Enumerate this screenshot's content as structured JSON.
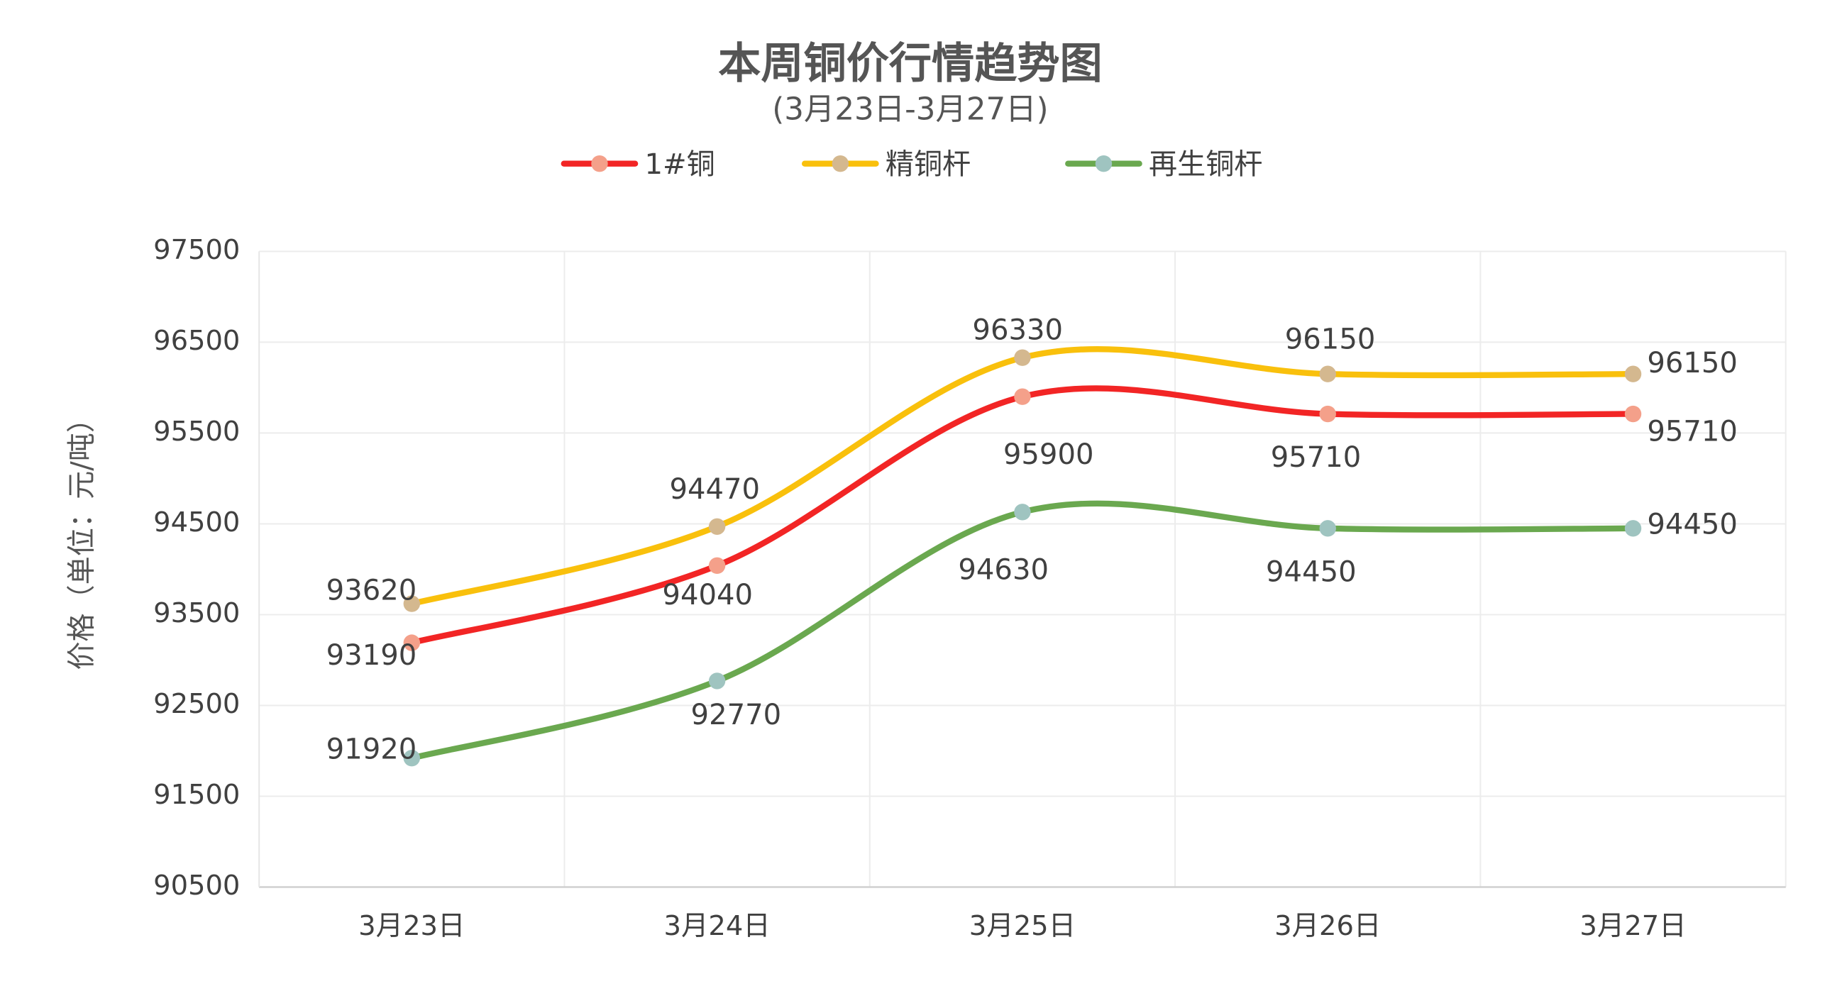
{
  "chart_data": {
    "type": "line",
    "title": "本周铜价行情趋势图",
    "subtitle": "(3月23日-3月27日)",
    "y_label": "价格（单位：元/吨）",
    "categories": [
      "3月23日",
      "3月24日",
      "3月25日",
      "3月26日",
      "3月27日"
    ],
    "series": [
      {
        "name": "1#铜",
        "color": "#f22525",
        "marker_color": "#f4a08a",
        "values": [
          93190,
          94040,
          95900,
          95710,
          95710
        ]
      },
      {
        "name": "精铜杆",
        "color": "#f9c00c",
        "marker_color": "#d4b88f",
        "values": [
          93620,
          94470,
          96330,
          96150,
          96150
        ]
      },
      {
        "name": "再生铜杆",
        "color": "#6aa84f",
        "marker_color": "#9fc4c0",
        "values": [
          91920,
          92770,
          94630,
          94450,
          94450
        ]
      }
    ],
    "ylim": [
      90500,
      97500
    ],
    "yticks": [
      90500,
      91500,
      92500,
      93500,
      94500,
      95500,
      96500,
      97500
    ],
    "grid": true,
    "smooth": true,
    "legend": "top"
  }
}
